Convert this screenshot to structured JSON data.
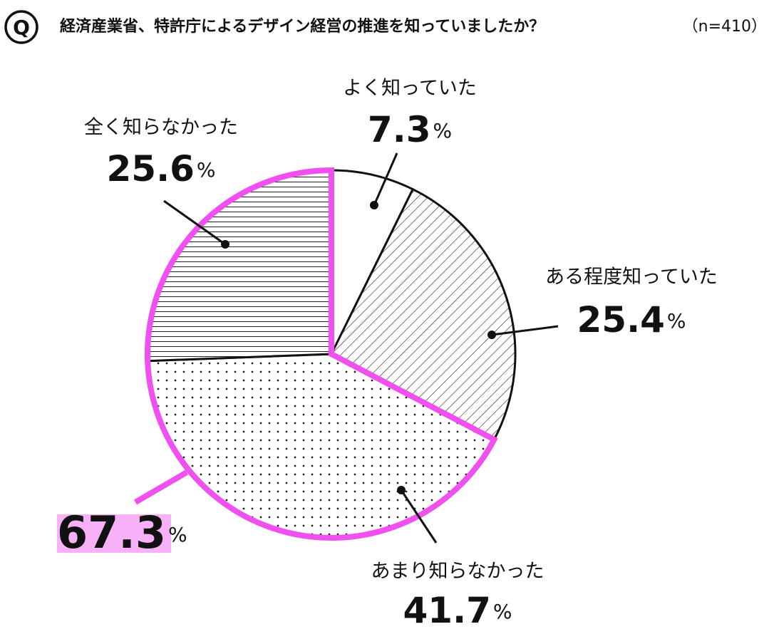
{
  "chart_data": {
    "type": "pie",
    "badge": "Q",
    "title": "経済産業省、特許庁によるデザイン経営の推進を知っていましたか？",
    "subtitle": "（n=410）",
    "unit": "%",
    "categories": [
      "よく知っていた",
      "ある程度知っていた",
      "あまり知らなかった",
      "全く知らなかった"
    ],
    "values": [
      7.3,
      25.4,
      41.7,
      25.6
    ],
    "patterns": [
      "solid",
      "diagonal",
      "dots",
      "horizontal"
    ],
    "highlight": {
      "value": 67.3,
      "color": "#f050f0"
    }
  }
}
